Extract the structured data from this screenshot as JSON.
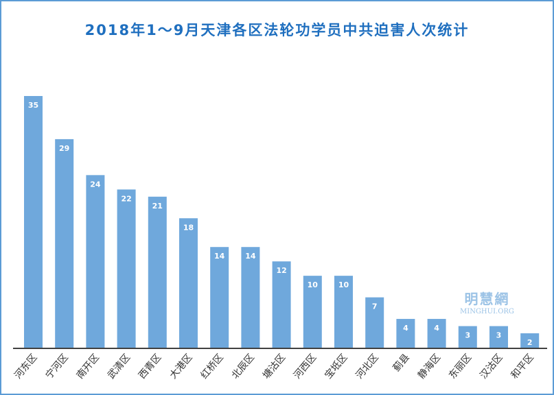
{
  "chart_data": {
    "type": "bar",
    "title": "2018年1～9月天津各区法轮功学员中共迫害人次统计",
    "categories": [
      "河东区",
      "宁河区",
      "南开区",
      "武清区",
      "西青区",
      "大港区",
      "红桥区",
      "北辰区",
      "塘沽区",
      "河西区",
      "宝坻区",
      "河北区",
      "蓟县",
      "静海区",
      "东丽区",
      "汉沽区",
      "和平区"
    ],
    "values": [
      35,
      29,
      24,
      22,
      21,
      18,
      14,
      14,
      12,
      10,
      10,
      7,
      4,
      4,
      3,
      3,
      2
    ],
    "xlabel": "",
    "ylabel": "",
    "ylim": [
      0,
      35
    ],
    "grid": false,
    "legend": "none",
    "colors": {
      "bar": "#6fa8dc",
      "title": "#1f6fbf",
      "frame": "#5b9bd5",
      "axis": "#404040"
    }
  },
  "watermark": {
    "cn": "明慧網",
    "en": "MINGHUI.ORG"
  }
}
